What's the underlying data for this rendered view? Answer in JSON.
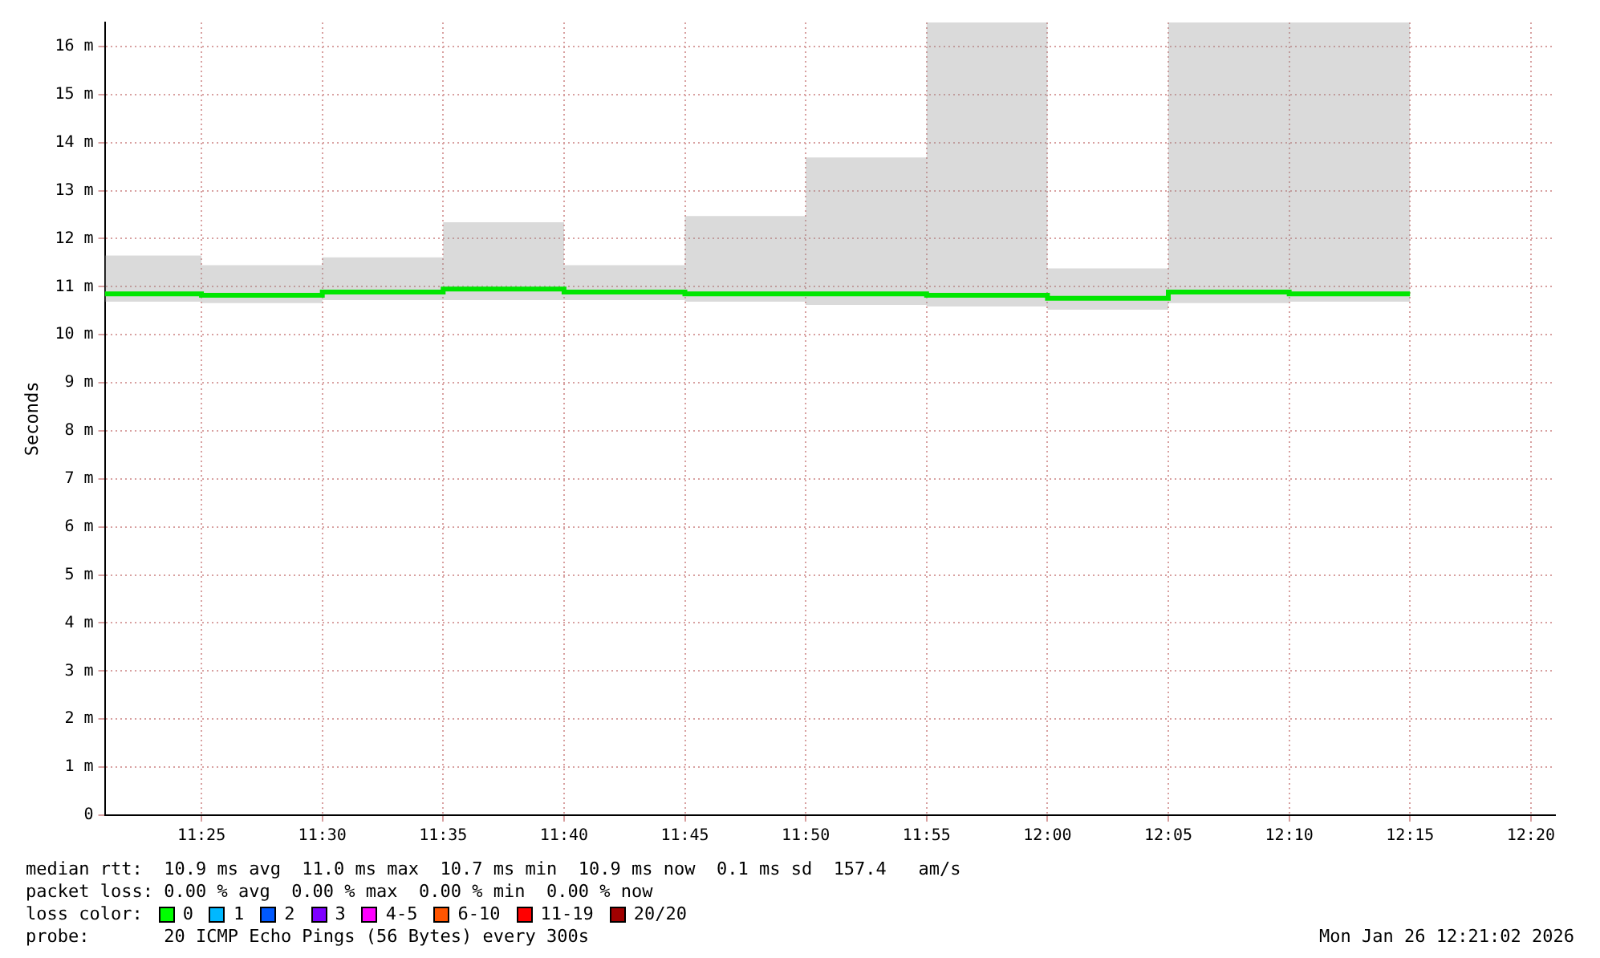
{
  "chart_data": {
    "type": "step",
    "ylabel": "Seconds",
    "xlim": [
      "2026-01-26T11:21",
      "2026-01-26T12:21"
    ],
    "xticks": [
      {
        "value": "2026-01-26T11:25",
        "label": "11:25"
      },
      {
        "value": "2026-01-26T11:30",
        "label": "11:30"
      },
      {
        "value": "2026-01-26T11:35",
        "label": "11:35"
      },
      {
        "value": "2026-01-26T11:40",
        "label": "11:40"
      },
      {
        "value": "2026-01-26T11:45",
        "label": "11:45"
      },
      {
        "value": "2026-01-26T11:50",
        "label": "11:50"
      },
      {
        "value": "2026-01-26T11:55",
        "label": "11:55"
      },
      {
        "value": "2026-01-26T12:00",
        "label": "12:00"
      },
      {
        "value": "2026-01-26T12:05",
        "label": "12:05"
      },
      {
        "value": "2026-01-26T12:10",
        "label": "12:10"
      },
      {
        "value": "2026-01-26T12:15",
        "label": "12:15"
      },
      {
        "value": "2026-01-26T12:20",
        "label": "12:20"
      }
    ],
    "ylim": [
      0,
      16.5
    ],
    "yticks": [
      0,
      {
        "value": 1,
        "label": "1 m"
      },
      {
        "value": 2,
        "label": "2 m"
      },
      {
        "value": 3,
        "label": "3 m"
      },
      {
        "value": 4,
        "label": "4 m"
      },
      {
        "value": 5,
        "label": "5 m"
      },
      {
        "value": 6,
        "label": "6 m"
      },
      {
        "value": 7,
        "label": "7 m"
      },
      {
        "value": 8,
        "label": "8 m"
      },
      {
        "value": 9,
        "label": "9 m"
      },
      {
        "value": 10,
        "label": "10 m"
      },
      {
        "value": 11,
        "label": "11 m"
      },
      {
        "value": 12,
        "label": "12 m"
      },
      {
        "value": 13,
        "label": "13 m"
      },
      {
        "value": 14,
        "label": "14 m"
      },
      {
        "value": 15,
        "label": "15 m"
      },
      {
        "value": 16,
        "label": "16 m"
      }
    ],
    "grid": true,
    "series": [
      {
        "color": "#00e600",
        "x": [
          "2026-01-26T11:21",
          "2026-01-26T11:25",
          "2026-01-26T11:30",
          "2026-01-26T11:35",
          "2026-01-26T11:40",
          "2026-01-26T11:45",
          "2026-01-26T11:50",
          "2026-01-26T11:55",
          "2026-01-26T12:00",
          "2026-01-26T12:05",
          "2026-01-26T12:10",
          "2026-01-26T12:15"
        ],
        "values": [
          10.85,
          10.82,
          10.89,
          10.95,
          10.89,
          10.85,
          10.85,
          10.82,
          10.76,
          10.89,
          10.85,
          10.85
        ],
        "lower": [
          10.69,
          10.66,
          10.72,
          10.72,
          10.72,
          10.69,
          10.62,
          10.59,
          10.52,
          10.66,
          10.69,
          10.69
        ],
        "upper": [
          11.65,
          11.45,
          11.61,
          12.34,
          11.45,
          12.47,
          13.69,
          16.5,
          11.38,
          16.5,
          16.5,
          16.5
        ]
      }
    ],
    "annotations": [
      "median rtt:  10.9 ms avg  11.0 ms max  10.7 ms min  10.9 ms now  0.1 ms sd  157.4   am/s",
      "packet loss: 0.00 % avg  0.00 % max  0.00 % min  0.00 % now",
      "loss color:",
      "0",
      "1",
      "2",
      "3",
      "4-5",
      "6-10",
      "11-19",
      "20/20",
      "probe:       20 ICMP Echo Pings (56 Bytes) every 300s",
      "Mon Jan 26 12:21:02 2026"
    ]
  }
}
